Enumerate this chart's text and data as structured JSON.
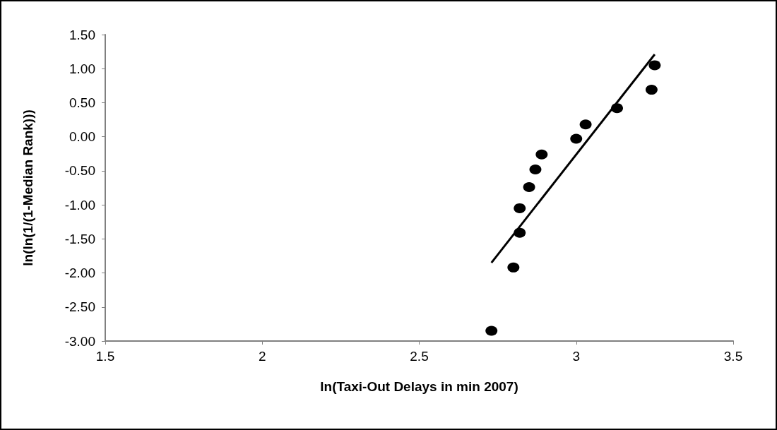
{
  "chart_data": {
    "type": "scatter",
    "xlabel": "ln(Taxi-Out Delays in min 2007)",
    "ylabel": "ln(ln(1/(1-Median Rank)))",
    "xlim": [
      1.5,
      3.5
    ],
    "xticks": [
      1.5,
      2,
      2.5,
      3,
      3.5
    ],
    "ylim": [
      -3,
      1.5
    ],
    "yticks": [
      {
        "value": -3,
        "label": "-3.00"
      },
      {
        "value": -2.5,
        "label": "-2.50"
      },
      {
        "value": -2,
        "label": "-2.00"
      },
      {
        "value": -1.5,
        "label": "-1.50"
      },
      {
        "value": -1,
        "label": "-1.00"
      },
      {
        "value": -0.5,
        "label": "-0.50"
      },
      {
        "value": 0,
        "label": "0.00"
      },
      {
        "value": 0.5,
        "label": "0.50"
      },
      {
        "value": 1,
        "label": "1.00"
      },
      {
        "value": 1.5,
        "label": "1.50"
      }
    ],
    "grid": false,
    "series": [
      {
        "color": "#000000",
        "marker": "circle",
        "x": [
          2.73,
          2.8,
          2.82,
          2.82,
          2.85,
          2.87,
          2.89,
          3.0,
          3.03,
          3.13,
          3.24,
          3.25
        ],
        "values": [
          -2.85,
          -1.92,
          -1.41,
          -1.05,
          -0.74,
          -0.48,
          -0.26,
          -0.03,
          0.18,
          0.42,
          0.69,
          1.05
        ]
      },
      {
        "type": "line",
        "marker": "none",
        "color": "#000000",
        "x": [
          2.73,
          3.25
        ],
        "values": [
          -1.85,
          1.21
        ]
      }
    ]
  }
}
